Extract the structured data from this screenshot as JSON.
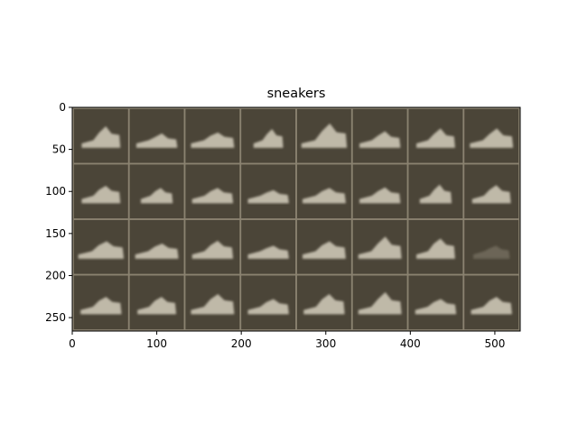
{
  "figure": {
    "title": "sneakers",
    "x_ticks": [
      "0",
      "100",
      "200",
      "300",
      "400",
      "500"
    ],
    "y_ticks": [
      "0",
      "50",
      "100",
      "150",
      "200",
      "250"
    ]
  },
  "image_grid": {
    "rows": 4,
    "cols": 8,
    "x_range": [
      0,
      530
    ],
    "y_range": [
      0,
      266
    ],
    "tile_size": 64,
    "separator": 2,
    "colors": {
      "background": "#4b4538",
      "separator": "#8a8270",
      "sneaker": "#c9c3b2",
      "sneaker_shadow": "#a9a291",
      "axis": "#000000"
    },
    "tiles": [
      {
        "row": 0,
        "col": 0,
        "scale": 0.85,
        "height": 1.0,
        "spike": 1.0,
        "faint": false
      },
      {
        "row": 0,
        "col": 1,
        "scale": 0.9,
        "height": 0.7,
        "spike": 0.6,
        "faint": false
      },
      {
        "row": 0,
        "col": 2,
        "scale": 0.95,
        "height": 0.8,
        "spike": 0.5,
        "faint": false
      },
      {
        "row": 0,
        "col": 3,
        "scale": 0.65,
        "height": 0.9,
        "spike": 0.8,
        "faint": false
      },
      {
        "row": 0,
        "col": 4,
        "scale": 1.0,
        "height": 1.1,
        "spike": 1.2,
        "faint": false
      },
      {
        "row": 0,
        "col": 5,
        "scale": 0.9,
        "height": 0.8,
        "spike": 0.7,
        "faint": false
      },
      {
        "row": 0,
        "col": 6,
        "scale": 0.85,
        "height": 0.9,
        "spike": 0.9,
        "faint": false
      },
      {
        "row": 0,
        "col": 7,
        "scale": 0.95,
        "height": 0.9,
        "spike": 0.9,
        "faint": false
      },
      {
        "row": 1,
        "col": 0,
        "scale": 0.85,
        "height": 0.9,
        "spike": 0.6,
        "faint": false
      },
      {
        "row": 1,
        "col": 1,
        "scale": 0.7,
        "height": 0.8,
        "spike": 0.5,
        "faint": false
      },
      {
        "row": 1,
        "col": 2,
        "scale": 0.9,
        "height": 0.8,
        "spike": 0.5,
        "faint": false
      },
      {
        "row": 1,
        "col": 3,
        "scale": 0.9,
        "height": 0.7,
        "spike": 0.4,
        "faint": false
      },
      {
        "row": 1,
        "col": 4,
        "scale": 0.95,
        "height": 0.8,
        "spike": 0.5,
        "faint": false
      },
      {
        "row": 1,
        "col": 5,
        "scale": 0.9,
        "height": 0.8,
        "spike": 0.6,
        "faint": false
      },
      {
        "row": 1,
        "col": 6,
        "scale": 0.7,
        "height": 0.9,
        "spike": 0.8,
        "faint": false
      },
      {
        "row": 1,
        "col": 7,
        "scale": 0.85,
        "height": 0.9,
        "spike": 0.7,
        "faint": false
      },
      {
        "row": 2,
        "col": 0,
        "scale": 1.0,
        "height": 0.9,
        "spike": 0.6,
        "faint": false
      },
      {
        "row": 2,
        "col": 1,
        "scale": 0.95,
        "height": 0.8,
        "spike": 0.5,
        "faint": false
      },
      {
        "row": 2,
        "col": 2,
        "scale": 0.9,
        "height": 0.9,
        "spike": 0.7,
        "faint": false
      },
      {
        "row": 2,
        "col": 3,
        "scale": 0.9,
        "height": 0.7,
        "spike": 0.4,
        "faint": false
      },
      {
        "row": 2,
        "col": 4,
        "scale": 0.95,
        "height": 0.9,
        "spike": 0.6,
        "faint": false
      },
      {
        "row": 2,
        "col": 5,
        "scale": 0.95,
        "height": 1.0,
        "spike": 1.1,
        "faint": false
      },
      {
        "row": 2,
        "col": 6,
        "scale": 0.85,
        "height": 1.0,
        "spike": 0.8,
        "faint": false
      },
      {
        "row": 2,
        "col": 7,
        "scale": 0.8,
        "height": 0.7,
        "spike": 0.4,
        "faint": true
      },
      {
        "row": 3,
        "col": 0,
        "scale": 0.9,
        "height": 0.9,
        "spike": 0.6,
        "faint": false
      },
      {
        "row": 3,
        "col": 1,
        "scale": 0.85,
        "height": 0.9,
        "spike": 0.6,
        "faint": false
      },
      {
        "row": 3,
        "col": 2,
        "scale": 0.95,
        "height": 1.0,
        "spike": 0.8,
        "faint": false
      },
      {
        "row": 3,
        "col": 3,
        "scale": 0.9,
        "height": 0.8,
        "spike": 0.5,
        "faint": false
      },
      {
        "row": 3,
        "col": 4,
        "scale": 0.9,
        "height": 1.0,
        "spike": 0.8,
        "faint": false
      },
      {
        "row": 3,
        "col": 5,
        "scale": 0.95,
        "height": 1.0,
        "spike": 1.1,
        "faint": false
      },
      {
        "row": 3,
        "col": 6,
        "scale": 0.9,
        "height": 0.8,
        "spike": 0.5,
        "faint": false
      },
      {
        "row": 3,
        "col": 7,
        "scale": 0.9,
        "height": 0.9,
        "spike": 0.6,
        "faint": false
      }
    ]
  }
}
